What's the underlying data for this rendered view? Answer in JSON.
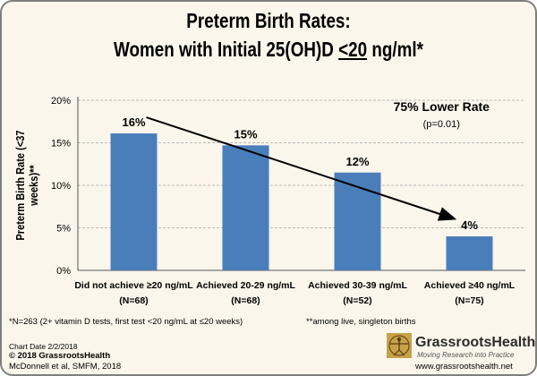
{
  "title_line1": "Preterm Birth Rates:",
  "title_line2_pre": "Women with Initial 25(OH)D ",
  "title_line2_underlined": "<20",
  "title_line2_post": " ng/ml*",
  "chart_data": {
    "type": "bar",
    "ylabel": "Preterm Birth Rate (<37 weeks)**",
    "ylim": [
      0,
      20
    ],
    "yticks": [
      "0%",
      "5%",
      "10%",
      "15%",
      "20%"
    ],
    "categories": [
      {
        "line1": "Did not achieve ≥20 ng/mL",
        "line2": "(N=68)"
      },
      {
        "line1": "Achieved 20-29 ng/mL",
        "line2": "(N=68)"
      },
      {
        "line1": "Achieved 30-39 ng/mL",
        "line2": "(N=52)"
      },
      {
        "line1": "Achieved ≥40 ng/mL",
        "line2": "(N=75)"
      }
    ],
    "values": [
      16.1,
      14.7,
      11.5,
      4.0
    ],
    "value_labels": [
      "16%",
      "15%",
      "12%",
      "4%"
    ],
    "annotation": {
      "text": "75% Lower Rate",
      "subtext": "(p=0.01)"
    },
    "grid": true,
    "bar_color": "#4a7ebb"
  },
  "footnote_1": "*N=263 (2+ vitamin D tests, first test <20 ng/mL at ≤20 weeks)",
  "footnote_2": "**among live, singleton births",
  "chart_date": "Chart Date 2/2/2018",
  "copyright": "© 2018 GrassrootsHealth",
  "citation": "McDonnell et al, SMFM, 2018",
  "brand": "GrassrootsHealth",
  "tagline": "Moving Research into Practice",
  "website": "www.grassrootshealth.net"
}
